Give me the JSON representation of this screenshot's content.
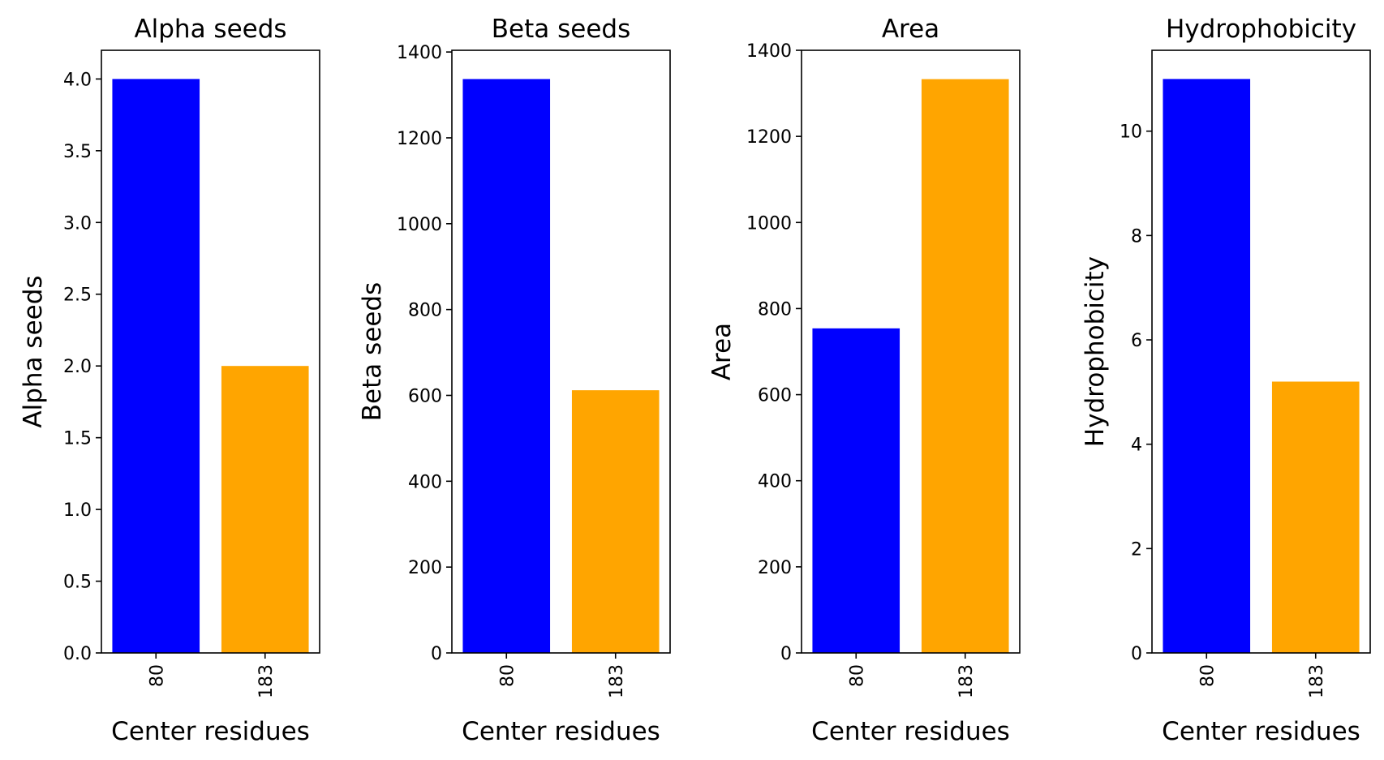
{
  "chart_data": [
    {
      "type": "bar",
      "title": "Alpha seeds",
      "xlabel": "Center residues",
      "ylabel": "Alpha seeds",
      "categories": [
        "80",
        "183"
      ],
      "values": [
        4.0,
        2.0
      ],
      "colors": [
        "#0000ff",
        "#ffa500"
      ],
      "ylim": [
        0,
        4.2
      ],
      "yticks": [
        "0.0",
        "0.5",
        "1.0",
        "1.5",
        "2.0",
        "2.5",
        "3.0",
        "3.5",
        "4.0"
      ],
      "ytick_values": [
        0,
        0.5,
        1.0,
        1.5,
        2.0,
        2.5,
        3.0,
        3.5,
        4.0
      ],
      "grid": false
    },
    {
      "type": "bar",
      "title": "Beta seeds",
      "xlabel": "Center residues",
      "ylabel": "Beta seeds",
      "categories": [
        "80",
        "183"
      ],
      "values": [
        1337,
        612
      ],
      "colors": [
        "#0000ff",
        "#ffa500"
      ],
      "ylim": [
        0,
        1404
      ],
      "yticks": [
        "0",
        "200",
        "400",
        "600",
        "800",
        "1000",
        "1200",
        "1400"
      ],
      "ytick_values": [
        0,
        200,
        400,
        600,
        800,
        1000,
        1200,
        1400
      ],
      "grid": false
    },
    {
      "type": "bar",
      "title": "Area",
      "xlabel": "Center residues",
      "ylabel": "Area",
      "categories": [
        "80",
        "183"
      ],
      "values": [
        754,
        1333
      ],
      "colors": [
        "#0000ff",
        "#ffa500"
      ],
      "ylim": [
        0,
        1400
      ],
      "yticks": [
        "0",
        "200",
        "400",
        "600",
        "800",
        "1000",
        "1200",
        "1400"
      ],
      "ytick_values": [
        0,
        200,
        400,
        600,
        800,
        1000,
        1200,
        1400
      ],
      "grid": false
    },
    {
      "type": "bar",
      "title": "Hydrophobicity",
      "xlabel": "Center residues",
      "ylabel": "Hydrophobicity",
      "categories": [
        "80",
        "183"
      ],
      "values": [
        11.0,
        5.2
      ],
      "colors": [
        "#0000ff",
        "#ffa500"
      ],
      "ylim": [
        0,
        11.55
      ],
      "yticks": [
        "0",
        "2",
        "4",
        "6",
        "8",
        "10"
      ],
      "ytick_values": [
        0,
        2,
        4,
        6,
        8,
        10
      ],
      "grid": false
    }
  ]
}
